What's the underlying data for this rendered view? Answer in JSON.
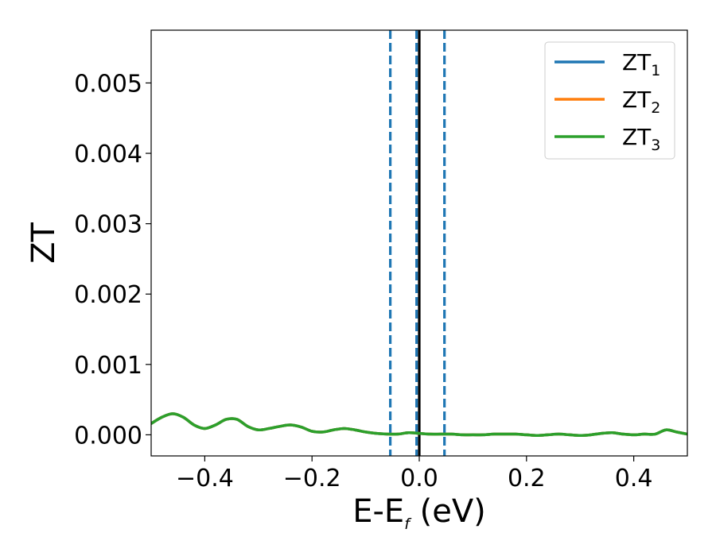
{
  "chart_data": {
    "type": "line",
    "xlabel": "E-E",
    "xlabel_subscript": "f",
    "xlabel_unit": " (eV)",
    "ylabel": "ZT",
    "xlim": [
      -0.5,
      0.5
    ],
    "ylim": [
      -0.0003,
      0.00575
    ],
    "xticks": [
      -0.4,
      -0.2,
      0.0,
      0.2,
      0.4
    ],
    "xtick_labels": [
      "−0.4",
      "−0.2",
      "0.0",
      "0.2",
      "0.4"
    ],
    "yticks": [
      0.0,
      0.001,
      0.002,
      0.003,
      0.004,
      0.005
    ],
    "ytick_labels": [
      "0.000",
      "0.001",
      "0.002",
      "0.003",
      "0.004",
      "0.005"
    ],
    "grid": false,
    "legend_position": "top-right",
    "vlines": [
      {
        "x": -0.054,
        "style": "dashed",
        "color": "#1f77b4"
      },
      {
        "x": -0.005,
        "style": "dashed",
        "color": "#1f77b4"
      },
      {
        "x": 0.047,
        "style": "dashed",
        "color": "#1f77b4"
      },
      {
        "x": 0.0,
        "style": "solid",
        "color": "#000000"
      }
    ],
    "series": [
      {
        "name": "ZT",
        "subscript": "1",
        "color": "#1f77b4",
        "x": [
          -0.5,
          -0.48,
          -0.46,
          -0.44,
          -0.42,
          -0.4,
          -0.38,
          -0.36,
          -0.34,
          -0.32,
          -0.3,
          -0.28,
          -0.26,
          -0.24,
          -0.22,
          -0.2,
          -0.18,
          -0.16,
          -0.14,
          -0.12,
          -0.1,
          -0.08,
          -0.06,
          -0.04,
          -0.02,
          0.0,
          0.02,
          0.04,
          0.06,
          0.08,
          0.1,
          0.12,
          0.14,
          0.16,
          0.18,
          0.2,
          0.22,
          0.24,
          0.26,
          0.28,
          0.3,
          0.32,
          0.34,
          0.36,
          0.38,
          0.4,
          0.42,
          0.44,
          0.46,
          0.48,
          0.5
        ],
        "y": [
          0.00016,
          0.00025,
          0.0003,
          0.00025,
          0.00014,
          9e-05,
          0.00014,
          0.00022,
          0.00022,
          0.00012,
          7e-05,
          9e-05,
          0.00012,
          0.00014,
          0.00011,
          5e-05,
          4e-05,
          7e-05,
          9e-05,
          7e-05,
          4e-05,
          2e-05,
          1e-05,
          1e-05,
          3e-05,
          2e-05,
          1e-05,
          1e-05,
          1e-05,
          0.0,
          0.0,
          0.0,
          1e-05,
          1e-05,
          1e-05,
          0.0,
          -1e-05,
          0.0,
          1e-05,
          0.0,
          -1e-05,
          0.0,
          2e-05,
          3e-05,
          1e-05,
          0.0,
          1e-05,
          1e-05,
          7e-05,
          4e-05,
          1e-05
        ]
      },
      {
        "name": "ZT",
        "subscript": "2",
        "color": "#ff7f0e",
        "x": [
          -0.5,
          -0.48,
          -0.46,
          -0.44,
          -0.42,
          -0.4,
          -0.38,
          -0.36,
          -0.34,
          -0.32,
          -0.3,
          -0.28,
          -0.26,
          -0.24,
          -0.22,
          -0.2,
          -0.18,
          -0.16,
          -0.14,
          -0.12,
          -0.1,
          -0.08,
          -0.06,
          -0.04,
          -0.02,
          0.0,
          0.02,
          0.04,
          0.06,
          0.08,
          0.1,
          0.12,
          0.14,
          0.16,
          0.18,
          0.2,
          0.22,
          0.24,
          0.26,
          0.28,
          0.3,
          0.32,
          0.34,
          0.36,
          0.38,
          0.4,
          0.42,
          0.44,
          0.46,
          0.48,
          0.5
        ],
        "y": [
          0.00016,
          0.00025,
          0.0003,
          0.00025,
          0.00014,
          9e-05,
          0.00014,
          0.00022,
          0.00022,
          0.00012,
          7e-05,
          9e-05,
          0.00012,
          0.00014,
          0.00011,
          5e-05,
          4e-05,
          7e-05,
          9e-05,
          7e-05,
          4e-05,
          2e-05,
          1e-05,
          1e-05,
          3e-05,
          2e-05,
          1e-05,
          1e-05,
          1e-05,
          0.0,
          0.0,
          0.0,
          1e-05,
          1e-05,
          1e-05,
          0.0,
          -1e-05,
          0.0,
          1e-05,
          0.0,
          -1e-05,
          0.0,
          2e-05,
          3e-05,
          1e-05,
          0.0,
          1e-05,
          1e-05,
          7e-05,
          4e-05,
          1e-05
        ]
      },
      {
        "name": "ZT",
        "subscript": "3",
        "color": "#2ca02c",
        "x": [
          -0.5,
          -0.48,
          -0.46,
          -0.44,
          -0.42,
          -0.4,
          -0.38,
          -0.36,
          -0.34,
          -0.32,
          -0.3,
          -0.28,
          -0.26,
          -0.24,
          -0.22,
          -0.2,
          -0.18,
          -0.16,
          -0.14,
          -0.12,
          -0.1,
          -0.08,
          -0.06,
          -0.04,
          -0.02,
          0.0,
          0.02,
          0.04,
          0.06,
          0.08,
          0.1,
          0.12,
          0.14,
          0.16,
          0.18,
          0.2,
          0.22,
          0.24,
          0.26,
          0.28,
          0.3,
          0.32,
          0.34,
          0.36,
          0.38,
          0.4,
          0.42,
          0.44,
          0.46,
          0.48,
          0.5
        ],
        "y": [
          0.00016,
          0.00025,
          0.0003,
          0.00025,
          0.00014,
          9e-05,
          0.00014,
          0.00022,
          0.00022,
          0.00012,
          7e-05,
          9e-05,
          0.00012,
          0.00014,
          0.00011,
          5e-05,
          4e-05,
          7e-05,
          9e-05,
          7e-05,
          4e-05,
          2e-05,
          1e-05,
          1e-05,
          3e-05,
          2e-05,
          1e-05,
          1e-05,
          1e-05,
          0.0,
          0.0,
          0.0,
          1e-05,
          1e-05,
          1e-05,
          0.0,
          -1e-05,
          0.0,
          1e-05,
          0.0,
          -1e-05,
          0.0,
          2e-05,
          3e-05,
          1e-05,
          0.0,
          1e-05,
          1e-05,
          7e-05,
          4e-05,
          1e-05
        ]
      }
    ]
  }
}
